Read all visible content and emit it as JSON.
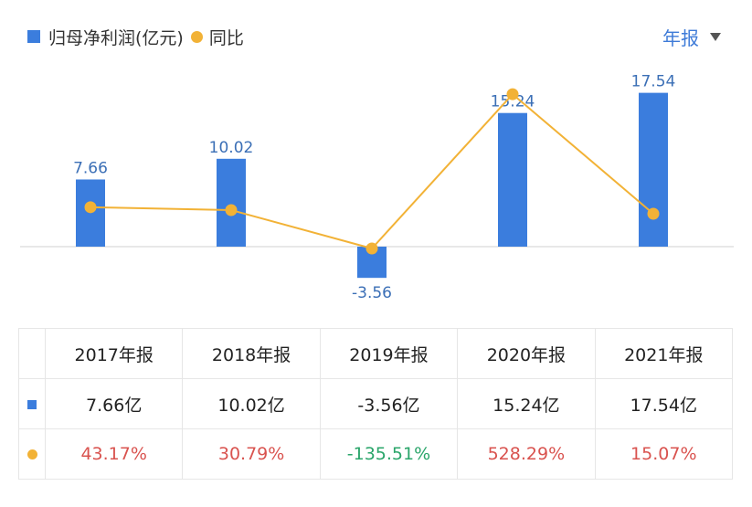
{
  "legend": {
    "bar_label": "归母净利润(亿元)",
    "line_label": "同比"
  },
  "period_selector": {
    "label": "年报"
  },
  "colors": {
    "bar": "#3b7ddd",
    "line": "#f2b236",
    "positive": "#d9534f",
    "negative": "#2aa56a"
  },
  "chart_data": {
    "type": "bar",
    "categories": [
      "2017年报",
      "2018年报",
      "2019年报",
      "2020年报",
      "2021年报"
    ],
    "series": [
      {
        "name": "归母净利润(亿元)",
        "type": "bar",
        "values": [
          7.66,
          10.02,
          -3.56,
          15.24,
          17.54
        ],
        "labels": [
          "7.66",
          "10.02",
          "-3.56",
          "15.24",
          "17.54"
        ]
      },
      {
        "name": "同比",
        "type": "line",
        "values": [
          43.17,
          30.79,
          -135.51,
          528.29,
          15.07
        ]
      }
    ],
    "ylim_bar": [
      -3.56,
      17.54
    ]
  },
  "table": {
    "headers": [
      "2017年报",
      "2018年报",
      "2019年报",
      "2020年报",
      "2021年报"
    ],
    "profit_row": [
      "7.66亿",
      "10.02亿",
      "-3.56亿",
      "15.24亿",
      "17.54亿"
    ],
    "yoy_row": [
      "43.17%",
      "30.79%",
      "-135.51%",
      "528.29%",
      "15.07%"
    ]
  }
}
